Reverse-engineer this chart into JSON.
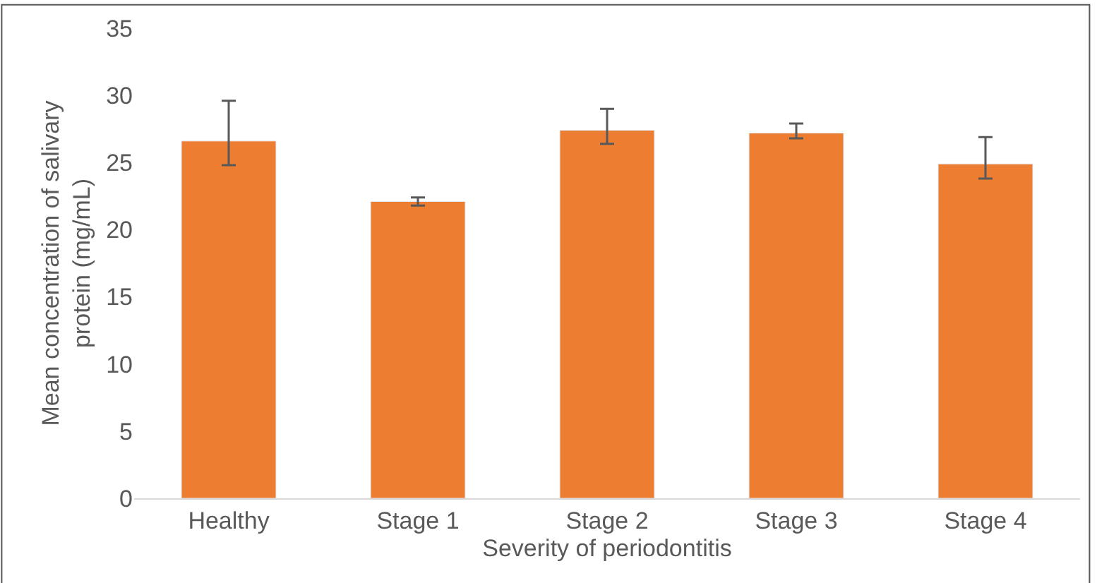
{
  "chart_data": {
    "type": "bar",
    "xlabel": "Severity of periodontitis",
    "ylabel": "Mean concentration of salivary protein (mg/mL)",
    "categories": [
      "Healthy",
      "Stage 1",
      "Stage 2",
      "Stage 3",
      "Stage 4"
    ],
    "series": [
      {
        "color": "#ed7d31",
        "values": [
          26.6,
          22.1,
          27.4,
          27.2,
          24.9
        ],
        "errors": [
          [
            24.8,
            29.6
          ],
          [
            21.8,
            22.4
          ],
          [
            26.4,
            29.0
          ],
          [
            26.8,
            27.9
          ],
          [
            23.8,
            26.9
          ]
        ]
      }
    ],
    "ylim": [
      0,
      35
    ],
    "yticks": [
      0,
      5,
      10,
      15,
      20,
      25,
      30,
      35
    ]
  }
}
